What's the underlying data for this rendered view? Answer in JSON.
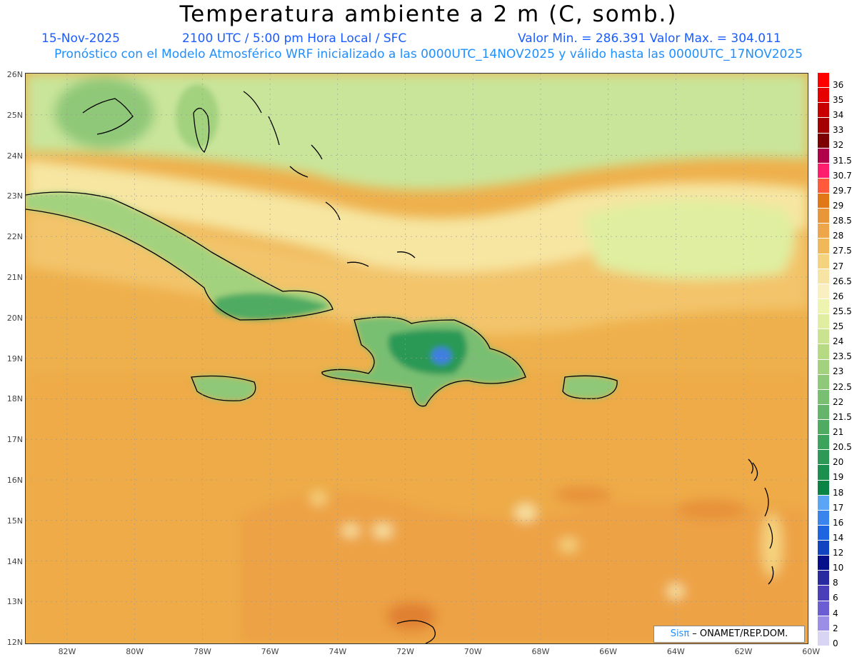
{
  "header": {
    "title": "Temperatura ambiente a 2 m (C, somb.)",
    "date": "15-Nov-2025",
    "time": "2100 UTC / 5:00 pm Hora Local / SFC",
    "min_max": "Valor Min. = 286.391   Valor Max. = 304.011",
    "forecast": "Pronóstico con el Modelo Atmosférico WRF inicializado a las 0000UTC_14NOV2025 y válido hasta las  0000UTC_17NOV2025"
  },
  "map": {
    "lat_labels": [
      "26N",
      "25N",
      "24N",
      "23N",
      "22N",
      "21N",
      "20N",
      "19N",
      "18N",
      "17N",
      "16N",
      "15N",
      "14N",
      "13N",
      "12N"
    ],
    "lon_labels": [
      "82W",
      "80W",
      "78W",
      "76W",
      "74W",
      "72W",
      "70W",
      "68W",
      "66W",
      "64W",
      "62W",
      "60W"
    ],
    "colors": {
      "ocean_warm": "#eeb04c",
      "ocean_mid": "#f3c46a",
      "ocean_hot": "#e7913b",
      "cool_band": "#f6e6a2",
      "north_green": "#c9e59a",
      "land_green": "#6cc47a",
      "land_dark": "#2f9e55",
      "peak_blue": "#3f7fe0"
    }
  },
  "colorbar": {
    "labels": [
      "36",
      "35",
      "34",
      "33",
      "32",
      "31.5",
      "30.7",
      "29.7",
      "29",
      "28.5",
      "28",
      "27.5",
      "27",
      "26.5",
      "26",
      "25.5",
      "25",
      "24",
      "23.5",
      "23",
      "22.5",
      "22",
      "21.5",
      "21",
      "20.5",
      "20",
      "19",
      "18",
      "17",
      "16",
      "14",
      "12",
      "10",
      "8",
      "6",
      "4",
      "2",
      "0"
    ],
    "colors": [
      "#ff0000",
      "#e60000",
      "#c80000",
      "#a50000",
      "#7d0000",
      "#b0004a",
      "#ff1e6e",
      "#ff5a3c",
      "#e07818",
      "#e9953a",
      "#eda64a",
      "#f1b85a",
      "#f5d27e",
      "#f7e3a4",
      "#f9efc0",
      "#eef3b0",
      "#dfeea0",
      "#c9e390",
      "#b6da84",
      "#a3d27e",
      "#8fc878",
      "#78bf72",
      "#64b56a",
      "#4fab62",
      "#3ca35c",
      "#2c9956",
      "#1b8f4e",
      "#0a8444",
      "#5aa5f5",
      "#3a84ee",
      "#1f64e0",
      "#1044c0",
      "#06108a",
      "#2a2aa0",
      "#4a3fb8",
      "#6a5ed2",
      "#9a8ee6",
      "#d8d4f4"
    ]
  },
  "credit": {
    "logo": "Sisπ",
    "text": " – ONAMET/REP.DOM."
  }
}
